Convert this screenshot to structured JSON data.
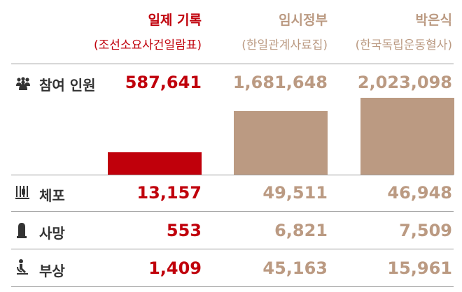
{
  "columns": [
    {
      "title": "일제 기록",
      "subtitle": "(조선소요사건일람표)",
      "color": "#c0000b"
    },
    {
      "title": "임시정부",
      "subtitle": "(한일관계사료집)",
      "color": "#bb9a82"
    },
    {
      "title": "박은식",
      "subtitle": "(한국독립운동혈사)",
      "color": "#bb9a82"
    }
  ],
  "rows": {
    "participants": {
      "label": "참여 인원",
      "icon": "crowd-icon"
    },
    "arrested": {
      "label": "체포",
      "icon": "prison-bars-icon"
    },
    "deaths": {
      "label": "사망",
      "icon": "tombstone-icon"
    },
    "injured": {
      "label": "부상",
      "icon": "injured-person-icon"
    }
  },
  "chart_data": {
    "type": "bar",
    "categories": [
      "일제 기록",
      "임시정부",
      "박은식"
    ],
    "series": [
      {
        "name": "참여 인원",
        "values": [
          587641,
          1681648,
          2023098
        ],
        "labels": [
          "587,641",
          "1,681,648",
          "2,023,098"
        ]
      },
      {
        "name": "체포",
        "values": [
          13157,
          49511,
          46948
        ],
        "labels": [
          "13,157",
          "49,511",
          "46,948"
        ]
      },
      {
        "name": "사망",
        "values": [
          553,
          6821,
          7509
        ],
        "labels": [
          "553",
          "6,821",
          "7,509"
        ]
      },
      {
        "name": "부상",
        "values": [
          1409,
          45163,
          15961
        ],
        "labels": [
          "1,409",
          "45,163",
          "15,961"
        ]
      }
    ],
    "bar_series": "참여 인원",
    "bar_colors": [
      "#c0000b",
      "#bb9a82",
      "#bb9a82"
    ],
    "ylim": [
      0,
      2023098
    ]
  }
}
